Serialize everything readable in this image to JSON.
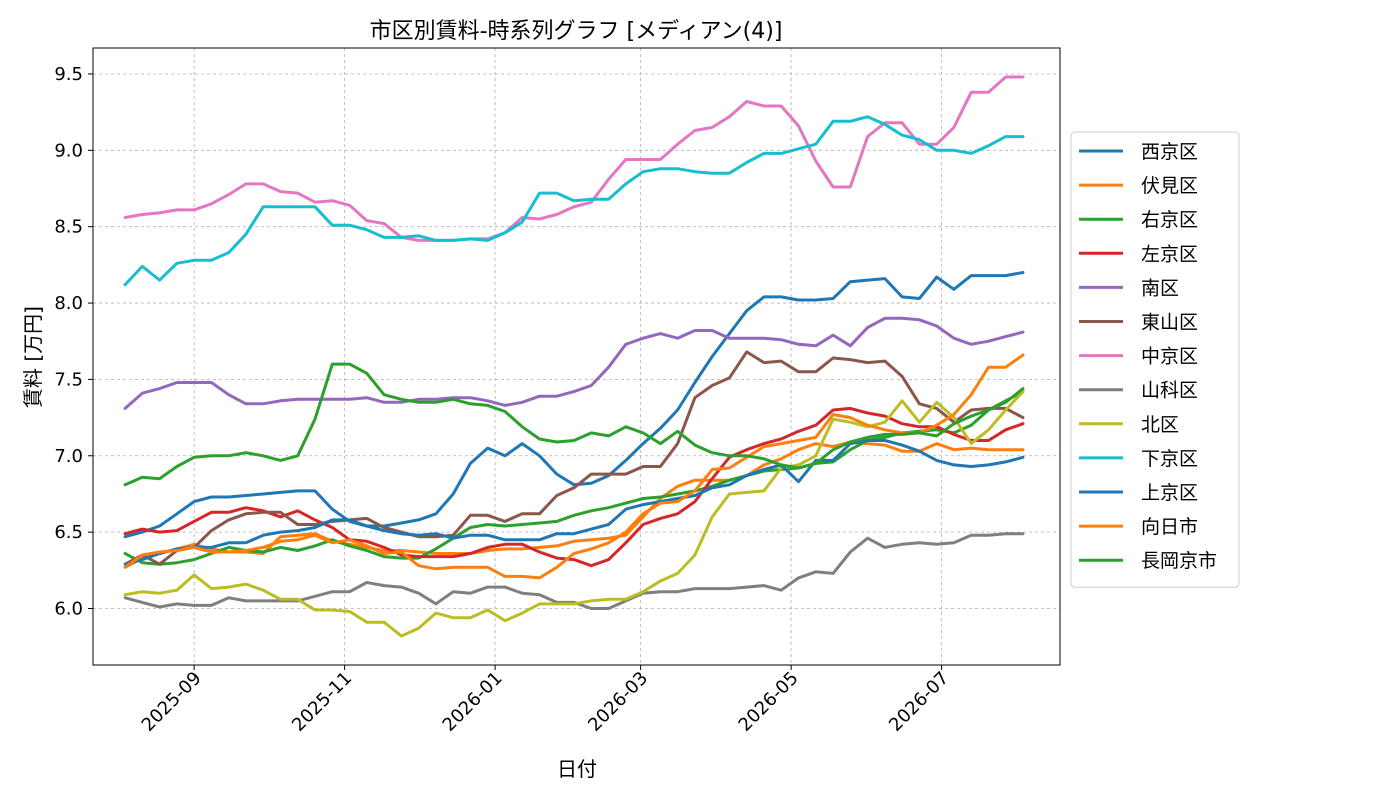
{
  "chart_data": {
    "type": "line",
    "title": "市区別賃料-時系列グラフ [メディアン(4)]",
    "xlabel": "日付",
    "ylabel": "賃料 [万円]",
    "ylim": [
      5.63,
      9.67
    ],
    "xlim": [
      "2025-07-22",
      "2026-08-18"
    ],
    "grid": true,
    "legend_position": "right",
    "x_ticks": [
      "2025-09",
      "2025-11",
      "2026-01",
      "2026-03",
      "2026-05",
      "2026-07"
    ],
    "x_tick_dates": [
      "2025-09-01",
      "2025-11-01",
      "2026-01-01",
      "2026-03-01",
      "2026-05-01",
      "2026-07-01"
    ],
    "y_ticks": [
      6.0,
      6.5,
      7.0,
      7.5,
      8.0,
      8.5,
      9.0,
      9.5
    ],
    "y_tick_labels": [
      "6.0",
      "6.5",
      "7.0",
      "7.5",
      "8.0",
      "8.5",
      "9.0",
      "9.5"
    ],
    "x": [
      "2025-08-04",
      "2025-08-11",
      "2025-08-18",
      "2025-08-25",
      "2025-09-01",
      "2025-09-08",
      "2025-09-15",
      "2025-09-22",
      "2025-09-29",
      "2025-10-06",
      "2025-10-13",
      "2025-10-20",
      "2025-10-27",
      "2025-11-03",
      "2025-11-10",
      "2025-11-17",
      "2025-11-24",
      "2025-12-01",
      "2025-12-08",
      "2025-12-15",
      "2025-12-22",
      "2025-12-29",
      "2026-01-05",
      "2026-01-12",
      "2026-01-19",
      "2026-01-26",
      "2026-02-02",
      "2026-02-09",
      "2026-02-16",
      "2026-02-23",
      "2026-03-02",
      "2026-03-09",
      "2026-03-16",
      "2026-03-23",
      "2026-03-30",
      "2026-04-06",
      "2026-04-13",
      "2026-04-20",
      "2026-04-27",
      "2026-05-04",
      "2026-05-11",
      "2026-05-18",
      "2026-05-25",
      "2026-06-01",
      "2026-06-08",
      "2026-06-15",
      "2026-06-22",
      "2026-06-29",
      "2026-07-06",
      "2026-07-13",
      "2026-07-20",
      "2026-07-27",
      "2026-08-03"
    ],
    "series": [
      {
        "name": "西京区",
        "color": "#1f77b4",
        "values": [
          6.47,
          6.5,
          6.54,
          6.62,
          6.7,
          6.73,
          6.73,
          6.74,
          6.75,
          6.76,
          6.77,
          6.77,
          6.65,
          6.57,
          6.54,
          6.54,
          6.56,
          6.58,
          6.62,
          6.75,
          6.95,
          7.05,
          7.0,
          7.08,
          7.0,
          6.88,
          6.81,
          6.82,
          6.87,
          6.97,
          7.08,
          7.18,
          7.3,
          7.48,
          7.65,
          7.8,
          7.95,
          8.04,
          8.04,
          8.02,
          8.02,
          8.03,
          8.14,
          8.15,
          8.16,
          8.04,
          8.03,
          8.17,
          8.09,
          8.18,
          8.18,
          8.18,
          8.2
        ]
      },
      {
        "name": "伏見区",
        "color": "#ff7f0e",
        "values": [
          6.27,
          6.33,
          6.36,
          6.39,
          6.42,
          6.39,
          6.37,
          6.37,
          6.36,
          6.47,
          6.48,
          6.49,
          6.44,
          6.42,
          6.4,
          6.38,
          6.38,
          6.37,
          6.36,
          6.36,
          6.36,
          6.38,
          6.39,
          6.39,
          6.4,
          6.41,
          6.44,
          6.45,
          6.46,
          6.48,
          6.6,
          6.72,
          6.8,
          6.84,
          6.84,
          6.84,
          6.87,
          6.94,
          6.98,
          7.04,
          7.08,
          7.06,
          7.09,
          7.08,
          7.07,
          7.03,
          7.03,
          7.08,
          7.04,
          7.05,
          7.04,
          7.04,
          7.04
        ]
      },
      {
        "name": "右京区",
        "color": "#2ca02c",
        "values": [
          6.36,
          6.3,
          6.29,
          6.3,
          6.32,
          6.36,
          6.4,
          6.38,
          6.37,
          6.4,
          6.38,
          6.41,
          6.45,
          6.41,
          6.38,
          6.34,
          6.33,
          6.33,
          6.39,
          6.46,
          6.53,
          6.55,
          6.54,
          6.55,
          6.56,
          6.57,
          6.61,
          6.64,
          6.66,
          6.69,
          6.72,
          6.73,
          6.75,
          6.77,
          6.8,
          6.84,
          6.87,
          6.9,
          6.91,
          6.92,
          6.95,
          6.96,
          7.04,
          7.1,
          7.12,
          7.15,
          7.16,
          7.17,
          7.15,
          7.2,
          7.3,
          7.36,
          7.42
        ]
      },
      {
        "name": "左京区",
        "color": "#d62728",
        "values": [
          6.49,
          6.52,
          6.5,
          6.51,
          6.57,
          6.63,
          6.63,
          6.66,
          6.64,
          6.6,
          6.64,
          6.58,
          6.53,
          6.45,
          6.44,
          6.4,
          6.35,
          6.34,
          6.34,
          6.34,
          6.36,
          6.4,
          6.42,
          6.42,
          6.37,
          6.33,
          6.32,
          6.28,
          6.32,
          6.43,
          6.55,
          6.59,
          6.62,
          6.7,
          6.85,
          6.99,
          7.04,
          7.08,
          7.11,
          7.16,
          7.2,
          7.3,
          7.31,
          7.28,
          7.26,
          7.21,
          7.19,
          7.19,
          7.14,
          7.1,
          7.1,
          7.17,
          7.21
        ]
      },
      {
        "name": "南区",
        "color": "#9467bd",
        "values": [
          7.31,
          7.41,
          7.44,
          7.48,
          7.48,
          7.48,
          7.4,
          7.34,
          7.34,
          7.36,
          7.37,
          7.37,
          7.37,
          7.37,
          7.38,
          7.35,
          7.35,
          7.37,
          7.37,
          7.38,
          7.38,
          7.36,
          7.33,
          7.35,
          7.39,
          7.39,
          7.42,
          7.46,
          7.58,
          7.73,
          7.77,
          7.8,
          7.77,
          7.82,
          7.82,
          7.77,
          7.77,
          7.77,
          7.76,
          7.73,
          7.72,
          7.79,
          7.72,
          7.84,
          7.9,
          7.9,
          7.89,
          7.85,
          7.77,
          7.73,
          7.75,
          7.78,
          7.81
        ]
      },
      {
        "name": "東山区",
        "color": "#8c564b",
        "values": [
          6.29,
          6.35,
          6.29,
          6.38,
          6.4,
          6.51,
          6.58,
          6.62,
          6.63,
          6.63,
          6.55,
          6.55,
          6.57,
          6.58,
          6.59,
          6.53,
          6.5,
          6.47,
          6.47,
          6.48,
          6.61,
          6.61,
          6.57,
          6.62,
          6.62,
          6.74,
          6.79,
          6.88,
          6.88,
          6.88,
          6.93,
          6.93,
          7.08,
          7.38,
          7.46,
          7.51,
          7.68,
          7.61,
          7.62,
          7.55,
          7.55,
          7.64,
          7.63,
          7.61,
          7.62,
          7.52,
          7.34,
          7.31,
          7.22,
          7.3,
          7.31,
          7.31,
          7.25
        ]
      },
      {
        "name": "中京区",
        "color": "#e377c2",
        "values": [
          8.56,
          8.58,
          8.59,
          8.61,
          8.61,
          8.65,
          8.71,
          8.78,
          8.78,
          8.73,
          8.72,
          8.66,
          8.67,
          8.64,
          8.54,
          8.52,
          8.43,
          8.41,
          8.41,
          8.41,
          8.42,
          8.42,
          8.46,
          8.56,
          8.55,
          8.58,
          8.63,
          8.66,
          8.81,
          8.94,
          8.94,
          8.94,
          9.04,
          9.13,
          9.15,
          9.22,
          9.32,
          9.29,
          9.29,
          9.16,
          8.93,
          8.76,
          8.76,
          9.09,
          9.18,
          9.18,
          9.04,
          9.04,
          9.15,
          9.38,
          9.38,
          9.48,
          9.48
        ]
      },
      {
        "name": "山科区",
        "color": "#7f7f7f",
        "values": [
          6.07,
          6.04,
          6.01,
          6.03,
          6.02,
          6.02,
          6.07,
          6.05,
          6.05,
          6.05,
          6.05,
          6.08,
          6.11,
          6.11,
          6.17,
          6.15,
          6.14,
          6.1,
          6.03,
          6.11,
          6.1,
          6.14,
          6.14,
          6.1,
          6.09,
          6.04,
          6.04,
          6.0,
          6.0,
          6.05,
          6.1,
          6.11,
          6.11,
          6.13,
          6.13,
          6.13,
          6.14,
          6.15,
          6.12,
          6.2,
          6.24,
          6.23,
          6.37,
          6.46,
          6.4,
          6.42,
          6.43,
          6.42,
          6.43,
          6.48,
          6.48,
          6.49,
          6.49
        ]
      },
      {
        "name": "北区",
        "color": "#bcbd22",
        "values": [
          6.09,
          6.11,
          6.1,
          6.12,
          6.22,
          6.13,
          6.14,
          6.16,
          6.12,
          6.06,
          6.06,
          5.99,
          5.99,
          5.98,
          5.91,
          5.91,
          5.82,
          5.87,
          5.97,
          5.94,
          5.94,
          5.99,
          5.92,
          5.97,
          6.03,
          6.03,
          6.03,
          6.05,
          6.06,
          6.06,
          6.11,
          6.18,
          6.23,
          6.35,
          6.6,
          6.75,
          6.76,
          6.77,
          6.92,
          6.94,
          7.0,
          7.24,
          7.22,
          7.19,
          7.22,
          7.36,
          7.22,
          7.35,
          7.25,
          7.08,
          7.17,
          7.3,
          7.42
        ]
      },
      {
        "name": "下京区",
        "color": "#17becf",
        "values": [
          8.12,
          8.24,
          8.15,
          8.26,
          8.28,
          8.28,
          8.33,
          8.45,
          8.63,
          8.63,
          8.63,
          8.63,
          8.51,
          8.51,
          8.48,
          8.43,
          8.43,
          8.44,
          8.41,
          8.41,
          8.42,
          8.41,
          8.46,
          8.53,
          8.72,
          8.72,
          8.67,
          8.68,
          8.68,
          8.78,
          8.86,
          8.88,
          8.88,
          8.86,
          8.85,
          8.85,
          8.92,
          8.98,
          8.98,
          9.01,
          9.04,
          9.19,
          9.19,
          9.22,
          9.17,
          9.1,
          9.07,
          9.0,
          9.0,
          8.98,
          9.03,
          9.09,
          9.09
        ]
      },
      {
        "name": "上京区",
        "color": "#1f77b4",
        "values": [
          6.29,
          6.32,
          6.36,
          6.39,
          6.4,
          6.4,
          6.43,
          6.43,
          6.48,
          6.5,
          6.51,
          6.53,
          6.58,
          6.58,
          6.54,
          6.51,
          6.49,
          6.48,
          6.49,
          6.46,
          6.48,
          6.48,
          6.45,
          6.45,
          6.45,
          6.49,
          6.49,
          6.52,
          6.55,
          6.65,
          6.68,
          6.7,
          6.72,
          6.74,
          6.79,
          6.81,
          6.87,
          6.91,
          6.94,
          6.83,
          6.97,
          6.97,
          7.08,
          7.1,
          7.1,
          7.07,
          7.03,
          6.97,
          6.94,
          6.93,
          6.94,
          6.96,
          6.99
        ]
      },
      {
        "name": "向日市",
        "color": "#ff7f0e",
        "values": [
          6.27,
          6.35,
          6.37,
          6.38,
          6.4,
          6.37,
          6.37,
          6.38,
          6.4,
          6.44,
          6.45,
          6.48,
          6.43,
          6.45,
          6.41,
          6.36,
          6.37,
          6.28,
          6.26,
          6.27,
          6.27,
          6.27,
          6.21,
          6.21,
          6.2,
          6.27,
          6.36,
          6.39,
          6.43,
          6.5,
          6.62,
          6.69,
          6.7,
          6.77,
          6.91,
          6.92,
          6.99,
          7.06,
          7.08,
          7.1,
          7.12,
          7.27,
          7.25,
          7.2,
          7.17,
          7.15,
          7.15,
          7.2,
          7.27,
          7.4,
          7.58,
          7.58,
          7.66
        ]
      },
      {
        "name": "長岡京市",
        "color": "#2ca02c",
        "values": [
          6.81,
          6.86,
          6.85,
          6.93,
          6.99,
          7.0,
          7.0,
          7.02,
          7.0,
          6.97,
          7.0,
          7.24,
          7.6,
          7.6,
          7.54,
          7.4,
          7.37,
          7.35,
          7.35,
          7.37,
          7.34,
          7.33,
          7.29,
          7.19,
          7.11,
          7.09,
          7.1,
          7.15,
          7.13,
          7.19,
          7.15,
          7.08,
          7.16,
          7.07,
          7.02,
          7.0,
          7.0,
          6.98,
          6.94,
          6.92,
          6.95,
          7.04,
          7.09,
          7.12,
          7.14,
          7.14,
          7.15,
          7.13,
          7.21,
          7.26,
          7.3,
          7.35,
          7.44
        ]
      }
    ]
  }
}
